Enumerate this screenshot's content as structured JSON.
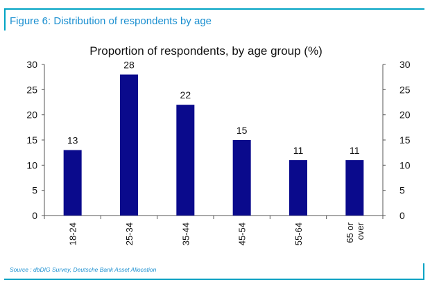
{
  "figure": {
    "title": "Figure 6: Distribution of respondents by age",
    "source": "Source : dbDIG Survey, Deutsche Bank Asset Allocation"
  },
  "colors": {
    "frame": "#00a3c4",
    "bar": "#0a0a8c",
    "figure_title": "#1a8fd0"
  },
  "chart_data": {
    "type": "bar",
    "title": "Proportion of respondents, by age group (%)",
    "xlabel": "",
    "ylabel": "",
    "categories": [
      "18-24",
      "25-34",
      "35-44",
      "45-54",
      "55-64",
      "65 or over"
    ],
    "values": [
      13,
      28,
      22,
      15,
      11,
      11
    ],
    "data_labels": [
      "13",
      "28",
      "22",
      "15",
      "11",
      "11"
    ],
    "ylim": [
      0,
      30
    ],
    "yticks": [
      0,
      5,
      10,
      15,
      20,
      25,
      30
    ],
    "secondary_axis": true,
    "grid": false,
    "legend": "none"
  }
}
